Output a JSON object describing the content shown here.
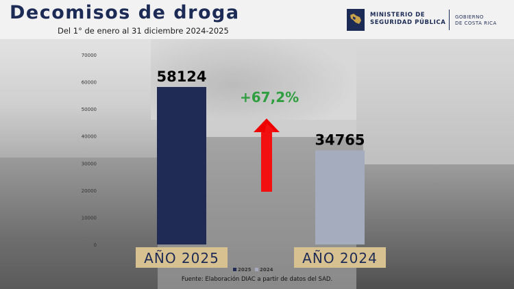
{
  "header": {
    "title": "Decomisos de droga",
    "subtitle": "Del 1° de enero al 31 diciembre 2024-2025",
    "logo_ministry": "MINISTERIO DE\nSEGURIDAD PÚBLICA",
    "logo_government": "GOBIERNO\nDE COSTA RICA"
  },
  "change_label": "+67,2%",
  "source": "Fuente: Elaboración DIAC a partir de datos del SAD.",
  "colors": {
    "series_2025": "#1f2a55",
    "series_2024": "#a5acbd",
    "arrow": "#ee0000",
    "change": "#2e9e3f",
    "category_box": "#d8c191"
  },
  "chart_data": {
    "type": "bar",
    "categories": [
      "AÑO 2025",
      "AÑO 2024"
    ],
    "series": [
      {
        "name": "2025",
        "values": [
          58124,
          null
        ]
      },
      {
        "name": "2024",
        "values": [
          null,
          34765
        ]
      }
    ],
    "values": [
      58124,
      34765
    ],
    "data_labels": [
      "58124",
      "34765"
    ],
    "ylim": [
      0,
      70000
    ],
    "yticks": [
      "0",
      "10000",
      "20000",
      "30000",
      "40000",
      "50000",
      "60000",
      "70000"
    ],
    "legend": [
      "2025",
      "2024"
    ],
    "legend_position": "bottom",
    "grid": false
  }
}
